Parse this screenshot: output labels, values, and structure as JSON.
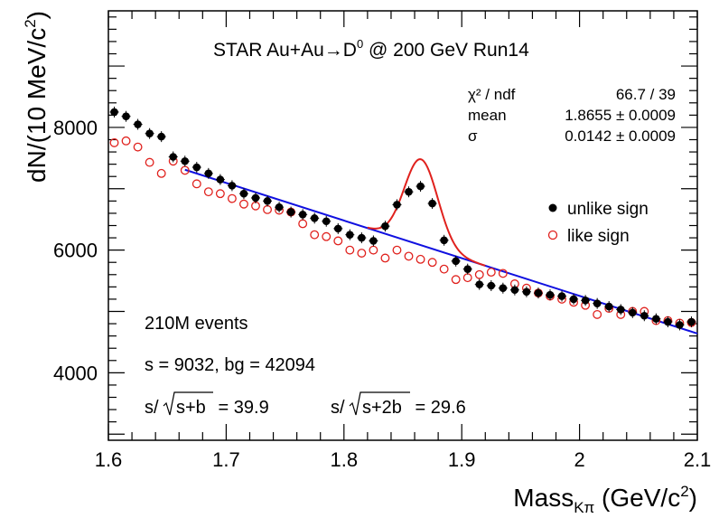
{
  "chart_data": {
    "type": "scatter",
    "title": "STAR Au+Au→D⁰ @ 200 GeV Run14",
    "title_parts": {
      "base": "STAR Au+Au",
      "arrow": "→",
      "particle": "D",
      "particle_sup": "0",
      "rest": " @ 200 GeV Run14"
    },
    "xlabel": "Mass",
    "xlabel_parts": {
      "base": "Mass",
      "sub": "Kπ",
      "unit": " (GeV/c",
      "unit_sup": "2",
      "close": ")"
    },
    "ylabel": "dN/(10 MeV/c²)",
    "ylabel_parts": {
      "base": "dN/(10 MeV/c",
      "sup": "2",
      "close": ")"
    },
    "xlim": [
      1.6,
      2.1
    ],
    "ylim": [
      2900,
      9900
    ],
    "x_ticks": [
      "1.6",
      "1.7",
      "1.8",
      "1.9",
      "2",
      "2.1"
    ],
    "y_ticks": [
      "4000",
      "6000",
      "8000"
    ],
    "grid": false,
    "legend_position": "right",
    "fit_stats": [
      {
        "label": "χ² / ndf",
        "value": "66.7 / 39"
      },
      {
        "label": "mean",
        "value": "1.8655 ± 0.0009"
      },
      {
        "label": "σ",
        "value": "0.0142 ± 0.0009"
      }
    ],
    "annotations": {
      "events": "210M events",
      "counts": "s = 9032,  bg = 42094",
      "significance_1": {
        "prefix": "s/",
        "radicand": "s+b",
        "value": " = 39.9"
      },
      "significance_2": {
        "prefix": "s/",
        "radicand": "s+2b",
        "value": " = 29.6"
      }
    },
    "series": [
      {
        "name": "unlike sign",
        "marker": "filled-circle",
        "color": "#000000",
        "x": [
          1.605,
          1.615,
          1.625,
          1.635,
          1.645,
          1.655,
          1.665,
          1.675,
          1.685,
          1.695,
          1.705,
          1.715,
          1.725,
          1.735,
          1.745,
          1.755,
          1.765,
          1.775,
          1.785,
          1.795,
          1.805,
          1.815,
          1.825,
          1.835,
          1.845,
          1.855,
          1.865,
          1.875,
          1.885,
          1.895,
          1.905,
          1.915,
          1.925,
          1.935,
          1.945,
          1.955,
          1.965,
          1.975,
          1.985,
          1.995,
          2.005,
          2.015,
          2.025,
          2.035,
          2.045,
          2.055,
          2.065,
          2.075,
          2.085,
          2.095
        ],
        "y": [
          8250,
          8180,
          8050,
          7900,
          7850,
          7520,
          7450,
          7350,
          7250,
          7150,
          7050,
          6920,
          6850,
          6800,
          6700,
          6620,
          6580,
          6520,
          6470,
          6350,
          6250,
          6200,
          6150,
          6390,
          6740,
          6950,
          7040,
          6760,
          6160,
          5820,
          5690,
          5440,
          5420,
          5380,
          5350,
          5320,
          5300,
          5270,
          5250,
          5200,
          5180,
          5130,
          5080,
          5030,
          4980,
          4930,
          4880,
          4830,
          4780,
          4830
        ]
      },
      {
        "name": "like sign",
        "marker": "open-circle",
        "color": "#e0211d",
        "x": [
          1.605,
          1.615,
          1.625,
          1.635,
          1.645,
          1.655,
          1.665,
          1.675,
          1.685,
          1.695,
          1.705,
          1.715,
          1.725,
          1.735,
          1.745,
          1.755,
          1.765,
          1.775,
          1.785,
          1.795,
          1.805,
          1.815,
          1.825,
          1.835,
          1.845,
          1.855,
          1.865,
          1.875,
          1.885,
          1.895,
          1.905,
          1.915,
          1.925,
          1.935,
          1.945,
          1.955,
          1.965,
          1.975,
          1.985,
          1.995,
          2.005,
          2.015,
          2.025,
          2.035,
          2.045,
          2.055,
          2.065,
          2.075,
          2.085,
          2.095
        ],
        "y": [
          7750,
          7780,
          7680,
          7430,
          7250,
          7450,
          7300,
          7080,
          6950,
          6920,
          6840,
          6750,
          6720,
          6660,
          6650,
          6620,
          6430,
          6250,
          6220,
          6150,
          6000,
          5950,
          6000,
          5870,
          6000,
          5900,
          5850,
          5800,
          5690,
          5520,
          5550,
          5600,
          5640,
          5620,
          5450,
          5380,
          5300,
          5250,
          5200,
          5150,
          5100,
          4950,
          5050,
          4950,
          5000,
          5000,
          4850,
          4850,
          4810,
          4820
        ]
      }
    ],
    "fits": [
      {
        "type": "linear",
        "color": "#1010e0",
        "x_range": [
          1.665,
          2.1
        ],
        "y_at_x_min": 7310,
        "y_at_x_max": 4640
      },
      {
        "type": "gaussian+linear",
        "color": "#e0211d",
        "x_range": [
          1.82,
          1.92
        ],
        "mean": 1.8655,
        "sigma": 0.0142,
        "amplitude": 1400
      }
    ]
  }
}
